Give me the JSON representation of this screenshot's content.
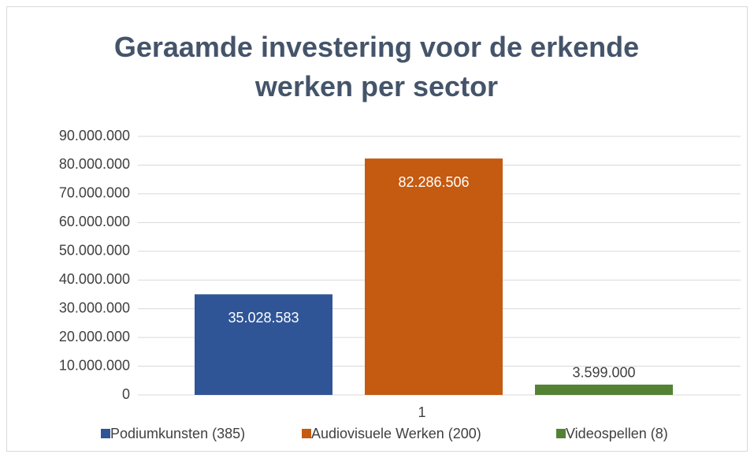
{
  "chart_data": {
    "type": "bar",
    "title": "Geraamde investering voor de erkende werken per sector",
    "categories": [
      "1"
    ],
    "series": [
      {
        "name": "Podiumkunsten (385)",
        "color": "#2f5597",
        "values": [
          35028583
        ],
        "value_labels": [
          "35.028.583"
        ]
      },
      {
        "name": "Audiovisuele Werken (200)",
        "color": "#c55a11",
        "values": [
          82286506
        ],
        "value_labels": [
          "82.286.506"
        ]
      },
      {
        "name": "Videospellen (8)",
        "color": "#548235",
        "values": [
          3599000
        ],
        "value_labels": [
          "3.599.000"
        ]
      }
    ],
    "ylim": [
      0,
      90000000
    ],
    "yticks": [
      0,
      {
        "value": 10000000,
        "label": "10.000.000"
      },
      {
        "value": 20000000,
        "label": "20.000.000"
      },
      {
        "value": 30000000,
        "label": "30.000.000"
      },
      {
        "value": 40000000,
        "label": "40.000.000"
      },
      {
        "value": 50000000,
        "label": "50.000.000"
      },
      {
        "value": 60000000,
        "label": "60.000.000"
      },
      {
        "value": 70000000,
        "label": "70.000.000"
      },
      {
        "value": 80000000,
        "label": "80.000.000"
      },
      {
        "value": 90000000,
        "label": "90.000.000"
      }
    ],
    "grid": true,
    "legend": "bottom"
  }
}
